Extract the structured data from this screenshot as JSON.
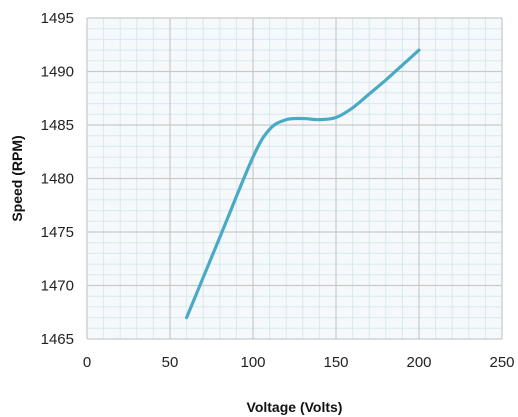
{
  "chart_data": {
    "type": "line",
    "title": "",
    "xlabel": "Voltage (Volts)",
    "ylabel": "Speed (RPM)",
    "xlim": [
      0,
      250
    ],
    "ylim": [
      1465,
      1495
    ],
    "x_ticks": [
      "0",
      "50",
      "100",
      "150",
      "200",
      "250"
    ],
    "y_ticks": [
      "1465",
      "1470",
      "1475",
      "1480",
      "1485",
      "1490",
      "1495"
    ],
    "x_minor_step": 10,
    "y_minor_step": 1,
    "grid": true,
    "legend": "none",
    "colors": {
      "line": "#4aaac6",
      "major_grid": "#c9c9c9",
      "minor_grid": "#d8e8f0",
      "plot_bg": "#f5f9fb"
    },
    "series": [
      {
        "x": [
          60,
          80,
          100,
          110,
          120,
          130,
          140,
          150,
          160,
          170,
          180,
          190,
          200
        ],
        "values": [
          1467,
          1474.5,
          1482,
          1484.6,
          1485.5,
          1485.6,
          1485.5,
          1485.7,
          1486.6,
          1487.9,
          1489.2,
          1490.6,
          1492
        ]
      }
    ]
  }
}
